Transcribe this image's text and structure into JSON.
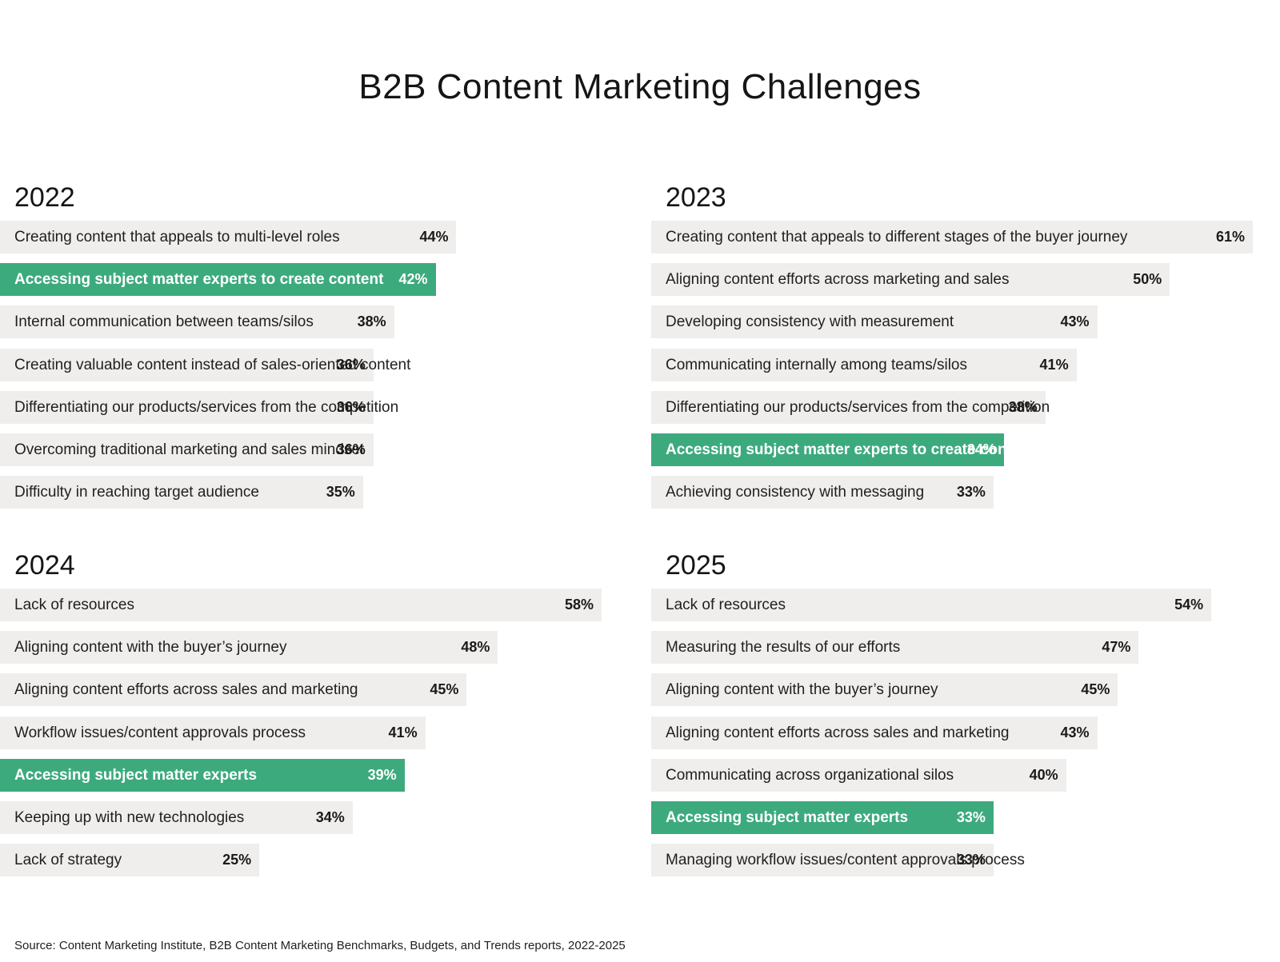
{
  "title": "B2B Content Marketing Challenges",
  "source": "Source: Content Marketing Institute, B2B Content Marketing Benchmarks, Budgets, and Trends reports, 2022-2025",
  "colors": {
    "highlight": "#3daa7e",
    "bar": "#f0eeed"
  },
  "chart_data": [
    {
      "type": "bar",
      "orientation": "horizontal",
      "title": "2022",
      "categories": [
        "Creating content that appeals to multi-level roles",
        "Accessing subject matter experts to create content",
        "Internal communication between teams/silos",
        "Creating valuable content instead of sales-oriented content",
        "Differentiating our products/services from the competition",
        "Overcoming traditional marketing and sales mindset",
        "Difficulty in reaching target audience"
      ],
      "values": [
        44,
        42,
        38,
        36,
        36,
        36,
        35
      ],
      "labels": [
        "44%",
        "42%",
        "38%",
        "36%",
        "36%",
        "36%",
        "35%"
      ],
      "highlight_index": 1
    },
    {
      "type": "bar",
      "orientation": "horizontal",
      "title": "2023",
      "categories": [
        "Creating content that appeals to different stages of the buyer journey",
        "Aligning content efforts across marketing and sales",
        "Developing consistency with measurement",
        "Communicating internally among teams/silos",
        "Differentiating our products/services from the competition",
        "Accessing subject matter experts to create content",
        "Achieving consistency with messaging"
      ],
      "values": [
        61,
        50,
        43,
        41,
        38,
        34,
        33
      ],
      "labels": [
        "61%",
        "50%",
        "43%",
        "41%",
        "38%",
        "34%",
        "33%"
      ],
      "highlight_index": 5
    },
    {
      "type": "bar",
      "orientation": "horizontal",
      "title": "2024",
      "categories": [
        "Lack of resources",
        "Aligning content with the buyer’s journey",
        "Aligning content efforts across sales and marketing",
        "Workflow issues/content approvals process",
        "Accessing subject matter experts",
        "Keeping up with new technologies",
        "Lack of strategy"
      ],
      "values": [
        58,
        48,
        45,
        41,
        39,
        34,
        25
      ],
      "labels": [
        "58%",
        "48%",
        "45%",
        "41%",
        "39%",
        "34%",
        "25%"
      ],
      "highlight_index": 4
    },
    {
      "type": "bar",
      "orientation": "horizontal",
      "title": "2025",
      "categories": [
        "Lack of resources",
        "Measuring the results of our efforts",
        "Aligning content with the buyer’s journey",
        "Aligning content efforts across sales and marketing",
        "Communicating across organizational silos",
        "Accessing subject matter experts",
        "Managing workflow issues/content approvals process"
      ],
      "values": [
        54,
        47,
        45,
        43,
        40,
        33,
        33
      ],
      "labels": [
        "54%",
        "47%",
        "45%",
        "43%",
        "40%",
        "33%",
        "33%"
      ],
      "highlight_index": 5
    }
  ]
}
